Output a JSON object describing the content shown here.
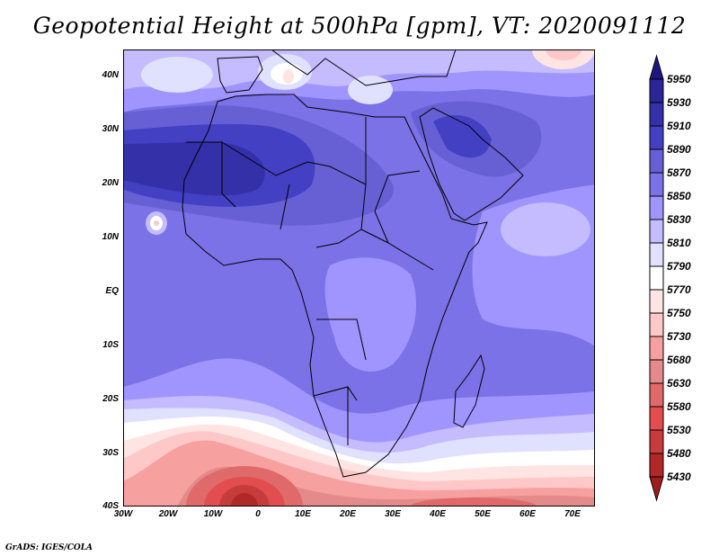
{
  "title": "Geopotential Height at 500hPa [gpm], VT: 2020091112",
  "credit": "GrADS: IGES/COLA",
  "lat_ticks": [
    "40N",
    "30N",
    "20N",
    "10N",
    "EQ",
    "10S",
    "20S",
    "30S",
    "40S"
  ],
  "lon_ticks": [
    "30W",
    "20W",
    "10W",
    "0",
    "10E",
    "20E",
    "30E",
    "40E",
    "50E",
    "60E",
    "70E"
  ],
  "colorbar": {
    "levels": [
      "5950",
      "5930",
      "5910",
      "5890",
      "5870",
      "5850",
      "5830",
      "5810",
      "5790",
      "5770",
      "5750",
      "5730",
      "5680",
      "5630",
      "5580",
      "5530",
      "5480",
      "5430"
    ],
    "colors": [
      "#1e1680",
      "#2a2698",
      "#3430a8",
      "#4440c4",
      "#6660d4",
      "#7a72e6",
      "#a094ff",
      "#c4bcff",
      "#e0e0ff",
      "#ffffff",
      "#ffe4e4",
      "#ffc8c8",
      "#f7a0a0",
      "#e48a8a",
      "#e06a6a",
      "#e24e50",
      "#c63c3c",
      "#b02828",
      "#a01c1c"
    ]
  }
}
